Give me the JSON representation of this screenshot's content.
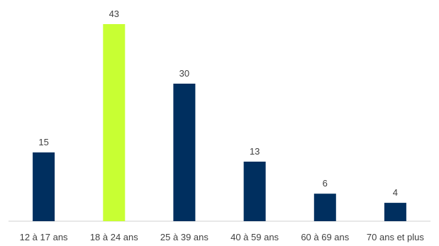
{
  "chart_data": {
    "type": "bar",
    "title": "",
    "xlabel": "",
    "ylabel": "",
    "categories": [
      "12 à 17 ans",
      "18 à 24 ans",
      "25 à 39 ans",
      "40 à 59 ans",
      "60 à 69 ans",
      "70 ans et plus"
    ],
    "values": [
      15,
      43,
      30,
      13,
      6,
      4
    ],
    "ylim": [
      0,
      43
    ],
    "grid": false,
    "legend": "none",
    "colors": {
      "default_bar": "#002f5f",
      "highlight_bar": "#c8ff33",
      "axis_line": "#d0d0d0",
      "text": "#404040"
    },
    "highlight_index": 1
  }
}
